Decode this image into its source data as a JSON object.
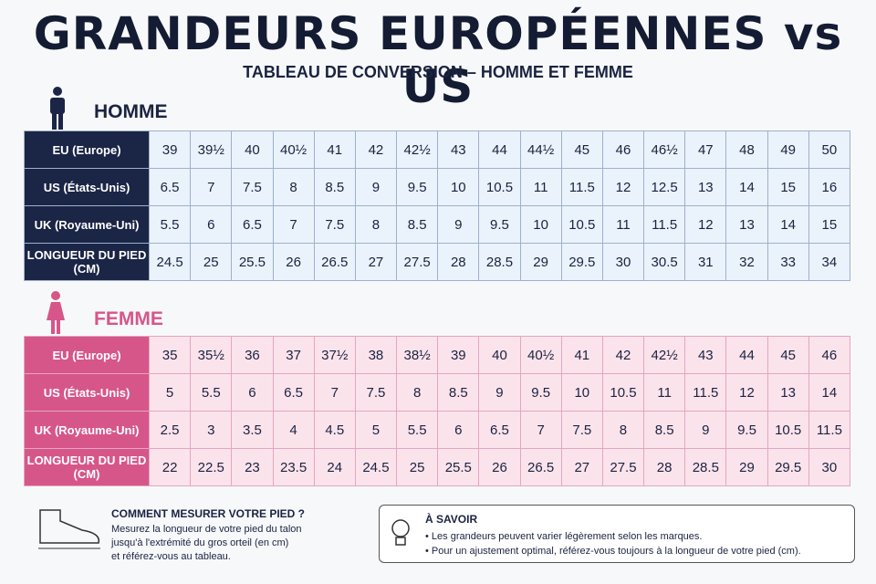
{
  "header": {
    "title": "GRANDEURS EUROPÉENNES vs US",
    "subtitle": "TABLEAU DE CONVERSION – HOMME ET FEMME"
  },
  "sections": [
    {
      "heading": "HOMME",
      "rows": [
        {
          "label": "EU (Europe)",
          "cells": [
            "39",
            "39½",
            "40",
            "40½",
            "41",
            "42",
            "42½",
            "43",
            "44",
            "44½",
            "45",
            "46",
            "46½",
            "47",
            "48",
            "49",
            "50"
          ]
        },
        {
          "label": "US (États-Unis)",
          "cells": [
            "6.5",
            "7",
            "7.5",
            "8",
            "8.5",
            "9",
            "9.5",
            "10",
            "10.5",
            "11",
            "11.5",
            "12",
            "12.5",
            "13",
            "14",
            "15",
            "16"
          ]
        },
        {
          "label": "UK (Royaume-Uni)",
          "cells": [
            "5.5",
            "6",
            "6.5",
            "7",
            "7.5",
            "8",
            "8.5",
            "9",
            "9.5",
            "10",
            "10.5",
            "11",
            "11.5",
            "12",
            "13",
            "14",
            "15"
          ]
        },
        {
          "label": "LONGUEUR DU PIED (CM)",
          "cells": [
            "24.5",
            "25",
            "25.5",
            "26",
            "26.5",
            "27",
            "27.5",
            "28",
            "28.5",
            "29",
            "29.5",
            "30",
            "30.5",
            "31",
            "32",
            "33",
            "34"
          ]
        }
      ]
    },
    {
      "heading": "FEMME",
      "rows": [
        {
          "label": "EU (Europe)",
          "cells": [
            "35",
            "35½",
            "36",
            "37",
            "37½",
            "38",
            "38½",
            "39",
            "40",
            "40½",
            "41",
            "42",
            "42½",
            "43",
            "44",
            "45",
            "46"
          ]
        },
        {
          "label": "US (États-Unis)",
          "cells": [
            "5",
            "5.5",
            "6",
            "6.5",
            "7",
            "7.5",
            "8",
            "8.5",
            "9",
            "9.5",
            "10",
            "10.5",
            "11",
            "11.5",
            "12",
            "13",
            "14"
          ]
        },
        {
          "label": "UK (Royaume-Uni)",
          "cells": [
            "2.5",
            "3",
            "3.5",
            "4",
            "4.5",
            "5",
            "5.5",
            "6",
            "6.5",
            "7",
            "7.5",
            "8",
            "8.5",
            "9",
            "9.5",
            "10.5",
            "11.5"
          ]
        },
        {
          "label": "LONGUEUR DU PIED (CM)",
          "cells": [
            "22",
            "22.5",
            "23",
            "23.5",
            "24",
            "24.5",
            "25",
            "25.5",
            "26",
            "26.5",
            "27",
            "27.5",
            "28",
            "28.5",
            "29",
            "29.5",
            "30"
          ]
        }
      ]
    }
  ],
  "tip": {
    "title": "COMMENT MESURER VOTRE PIED ?",
    "lines": [
      "Mesurez la longueur de votre pied du talon",
      "jusqu'à l'extrémité du gros orteil (en cm)",
      "et référez-vous au tableau."
    ]
  },
  "note": {
    "title": "À SAVOIR",
    "items": [
      "Les grandeurs peuvent varier légèrement selon les marques.",
      "Pour un ajustement optimal, référez-vous toujours à la longueur de votre pied (cm)."
    ]
  }
}
